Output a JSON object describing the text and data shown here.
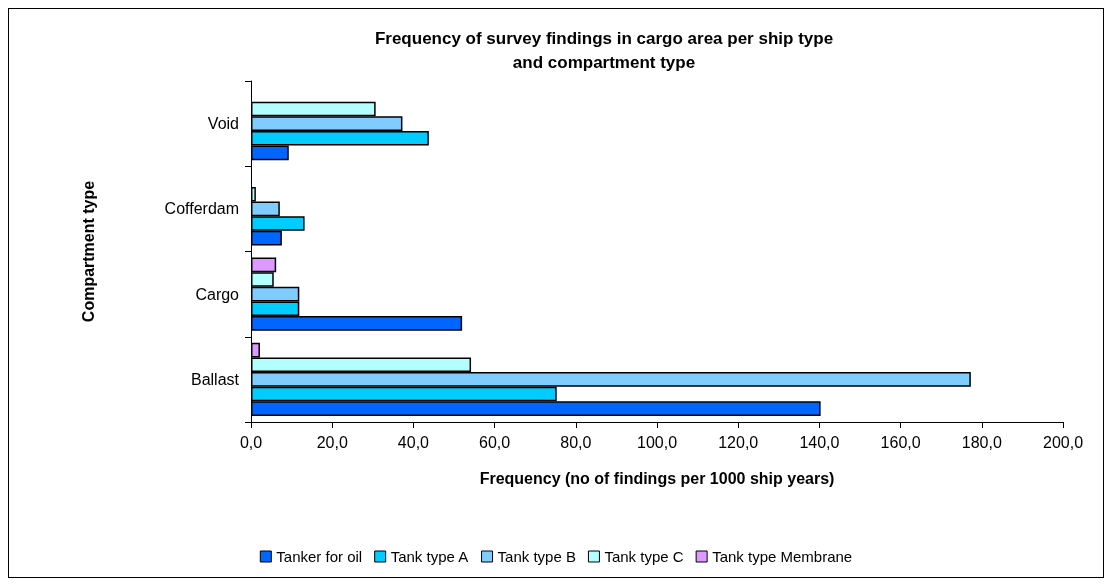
{
  "chart_data": {
    "type": "bar",
    "orientation": "horizontal",
    "title": "Frequency of survey findings in cargo area per ship type\nand compartment type",
    "xlabel": "Frequency (no of findings per 1000 ship years)",
    "ylabel": "Compartment type",
    "categories": [
      "Void",
      "Cofferdam",
      "Cargo",
      "Ballast"
    ],
    "series": [
      {
        "name": "Tanker for oil",
        "color": "#0066ff",
        "values": [
          9.3,
          7.6,
          52.0,
          140.3
        ]
      },
      {
        "name": "Tank type A",
        "color": "#00ccff",
        "values": [
          43.8,
          13.2,
          11.9,
          75.3
        ]
      },
      {
        "name": "Tank type B",
        "color": "#80ccff",
        "values": [
          37.3,
          7.1,
          11.9,
          177.3
        ]
      },
      {
        "name": "Tank type C",
        "color": "#b3ffff",
        "values": [
          30.7,
          1.2,
          5.6,
          54.2
        ]
      },
      {
        "name": "Tank type Membrane",
        "color": "#dd99ff",
        "values": [
          null,
          null,
          6.2,
          2.2
        ]
      }
    ],
    "xlim": [
      0,
      200
    ],
    "xticks": [
      {
        "value": 0,
        "label": "0,0"
      },
      {
        "value": 20,
        "label": "20,0"
      },
      {
        "value": 40,
        "label": "40,0"
      },
      {
        "value": 60,
        "label": "60,0"
      },
      {
        "value": 80,
        "label": "80,0"
      },
      {
        "value": 100,
        "label": "100,0"
      },
      {
        "value": 120,
        "label": "120,0"
      },
      {
        "value": 140,
        "label": "140,0"
      },
      {
        "value": 160,
        "label": "160,0"
      },
      {
        "value": 180,
        "label": "180,0"
      },
      {
        "value": 200,
        "label": "200,0"
      }
    ],
    "grid": false,
    "legend": "bottom"
  }
}
